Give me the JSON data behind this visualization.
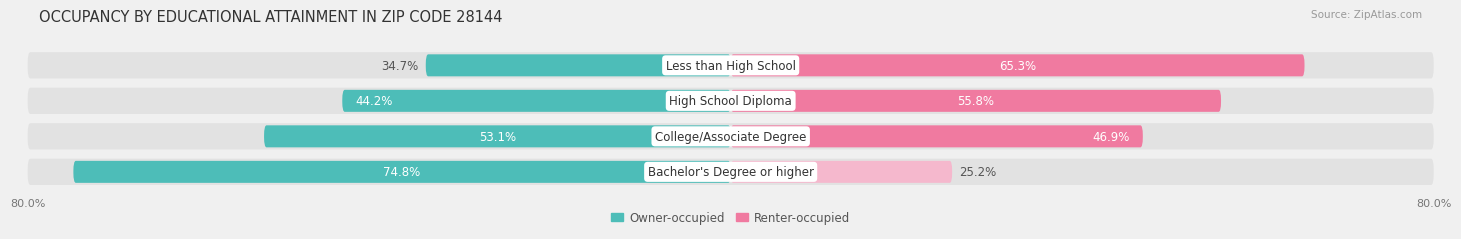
{
  "title": "OCCUPANCY BY EDUCATIONAL ATTAINMENT IN ZIP CODE 28144",
  "source": "Source: ZipAtlas.com",
  "categories": [
    "Less than High School",
    "High School Diploma",
    "College/Associate Degree",
    "Bachelor's Degree or higher"
  ],
  "owner_values": [
    34.7,
    44.2,
    53.1,
    74.8
  ],
  "renter_values": [
    65.3,
    55.8,
    46.9,
    25.2
  ],
  "owner_color": "#4dbdb8",
  "renter_color": "#f07aa0",
  "renter_color_light": "#f5b8cd",
  "owner_label": "Owner-occupied",
  "renter_label": "Renter-occupied",
  "xlim": 80.0,
  "bar_height": 0.62,
  "bg_color": "#f0f0f0",
  "bar_bg_color": "#e2e2e2",
  "row_bg_color": "#e8e8e8",
  "title_fontsize": 10.5,
  "label_fontsize": 8.5,
  "value_fontsize": 8.5,
  "source_fontsize": 7.5,
  "tick_fontsize": 8.0,
  "white": "#ffffff",
  "dark_text": "#555555",
  "x_ticks_left": [
    -80.0
  ],
  "x_ticks_right": [
    80.0
  ]
}
